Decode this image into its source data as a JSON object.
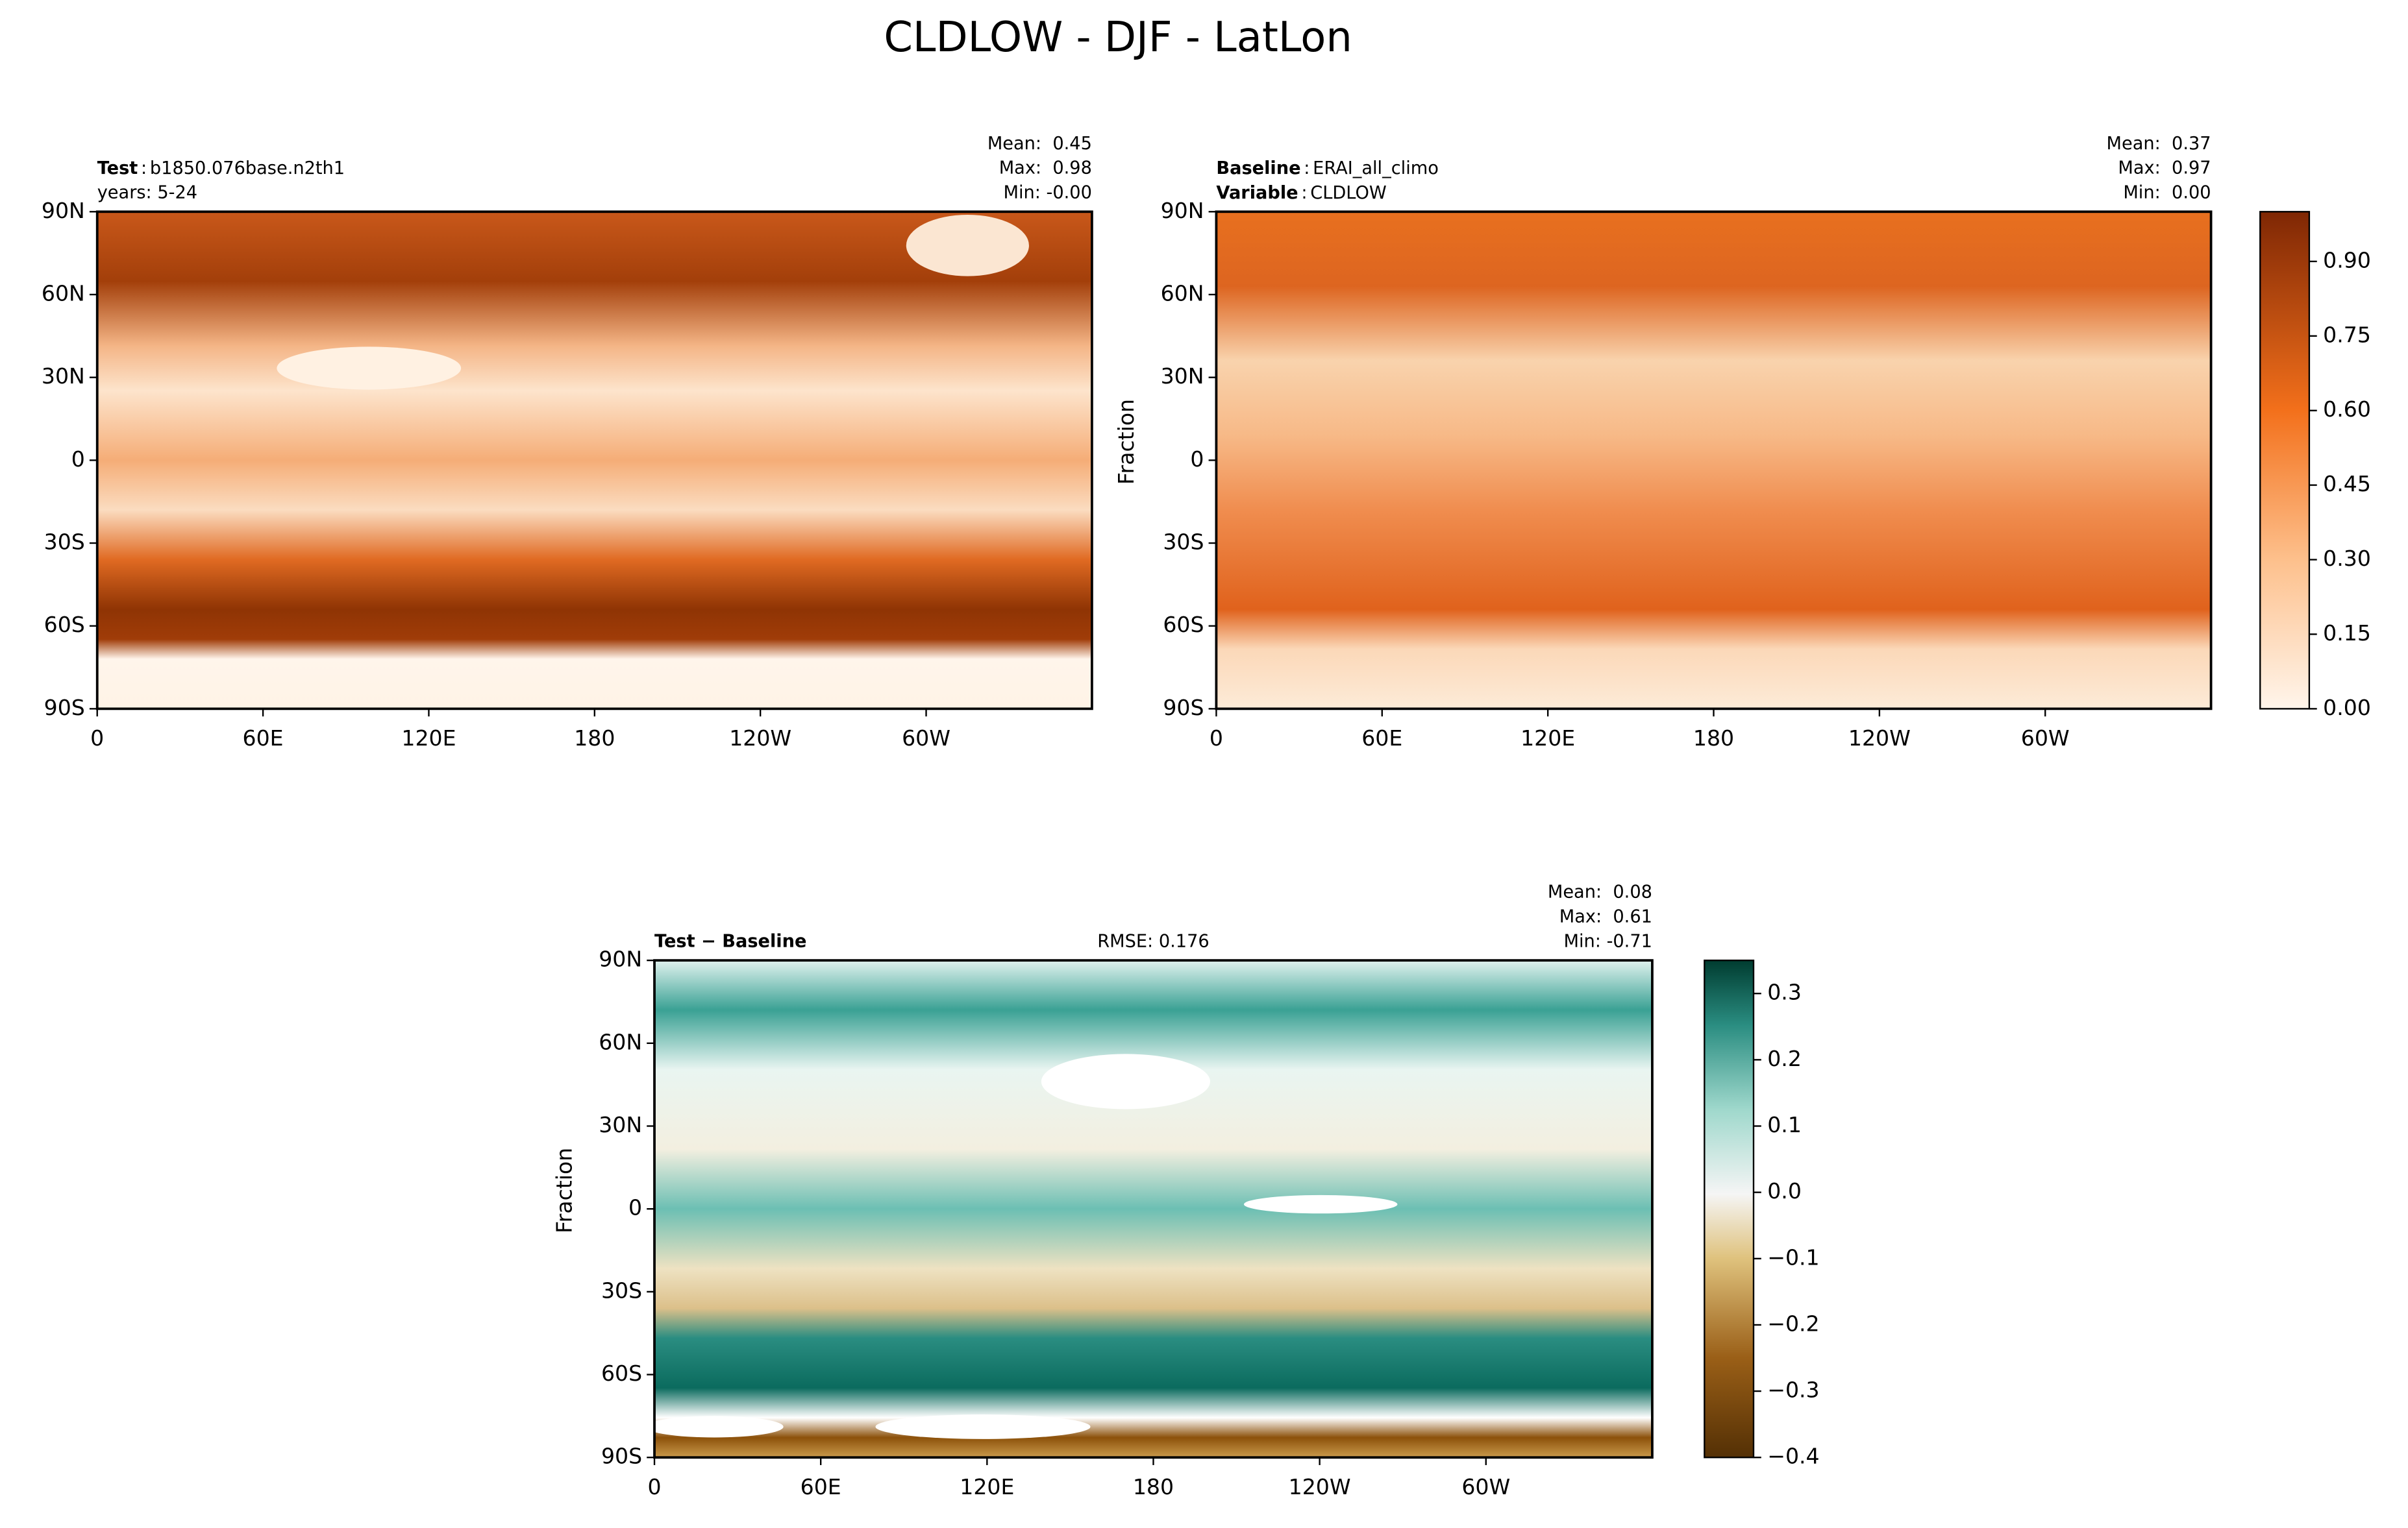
{
  "title": "CLDLOW - DJF - LatLon",
  "chart_data": [
    {
      "type": "map",
      "header": [
        {
          "key": "Test",
          "sep": ":",
          "value": "b1850.076base.n2th1"
        }
      ],
      "note": "years: 5-24",
      "stats": [
        "Mean:  0.45",
        "Max:  0.98",
        "Min: -0.00"
      ],
      "xlim": [
        0,
        360
      ],
      "ylim": [
        -90,
        90
      ],
      "xticks": [
        0,
        {
          "value": 60,
          "label": "60E"
        },
        {
          "value": 120,
          "label": "120E"
        },
        180,
        {
          "value": 240,
          "label": "120W"
        },
        {
          "value": 300,
          "label": "60W"
        }
      ],
      "yticks": [
        {
          "value": -90,
          "label": "90S"
        },
        {
          "value": -60,
          "label": "60S"
        },
        {
          "value": -30,
          "label": "30S"
        },
        0,
        {
          "value": 30,
          "label": "30N"
        },
        {
          "value": 60,
          "label": "60N"
        },
        {
          "value": 90,
          "label": "90N"
        }
      ]
    },
    {
      "type": "map",
      "header": [
        {
          "key": "Baseline",
          "sep": ":",
          "value": "ERAI_all_climo"
        },
        {
          "key": "Variable",
          "sep": ":",
          "value": "CLDLOW"
        }
      ],
      "stats": [
        "Mean:  0.37",
        "Max:  0.97",
        "Min:  0.00"
      ],
      "ylabel": "Fraction",
      "xlim": [
        0,
        360
      ],
      "ylim": [
        -90,
        90
      ],
      "xticks": [
        0,
        {
          "value": 60,
          "label": "60E"
        },
        {
          "value": 120,
          "label": "120E"
        },
        180,
        {
          "value": 240,
          "label": "120W"
        },
        {
          "value": 300,
          "label": "60W"
        }
      ],
      "yticks": [
        {
          "value": -90,
          "label": "90S"
        },
        {
          "value": -60,
          "label": "60S"
        },
        {
          "value": -30,
          "label": "30S"
        },
        0,
        {
          "value": 30,
          "label": "30N"
        },
        {
          "value": 60,
          "label": "60N"
        },
        {
          "value": 90,
          "label": "90N"
        }
      ],
      "colorbar": {
        "lim": [
          0,
          1
        ],
        "ticks": [
          {
            "value": 0,
            "label": "0.00"
          },
          0.15,
          {
            "value": 0.3,
            "label": "0.30"
          },
          0.45,
          {
            "value": 0.6,
            "label": "0.60"
          },
          0.75,
          {
            "value": 0.9,
            "label": "0.90"
          }
        ]
      }
    },
    {
      "type": "map",
      "diff_title": "Test − Baseline",
      "rmse": "RMSE: 0.176",
      "stats": [
        "Mean:  0.08",
        "Max:  0.61",
        "Min: -0.71"
      ],
      "ylabel": "Fraction",
      "xlim": [
        0,
        360
      ],
      "ylim": [
        -90,
        90
      ],
      "xticks": [
        0,
        {
          "value": 60,
          "label": "60E"
        },
        {
          "value": 120,
          "label": "120E"
        },
        180,
        {
          "value": 240,
          "label": "120W"
        },
        {
          "value": 300,
          "label": "60W"
        }
      ],
      "yticks": [
        {
          "value": -90,
          "label": "90S"
        },
        {
          "value": -60,
          "label": "60S"
        },
        {
          "value": -30,
          "label": "30S"
        },
        0,
        {
          "value": 30,
          "label": "30N"
        },
        {
          "value": 60,
          "label": "60N"
        },
        {
          "value": 90,
          "label": "90N"
        }
      ],
      "colorbar": {
        "lim": [
          -0.4,
          0.35
        ],
        "ticks": [
          {
            "value": -0.4,
            "label": "−0.4"
          },
          {
            "value": -0.3,
            "label": "−0.3"
          },
          {
            "value": -0.2,
            "label": "−0.2"
          },
          {
            "value": -0.1,
            "label": "−0.1"
          },
          {
            "value": 0,
            "label": "0.0"
          },
          0.1,
          0.2,
          0.3
        ]
      }
    }
  ]
}
